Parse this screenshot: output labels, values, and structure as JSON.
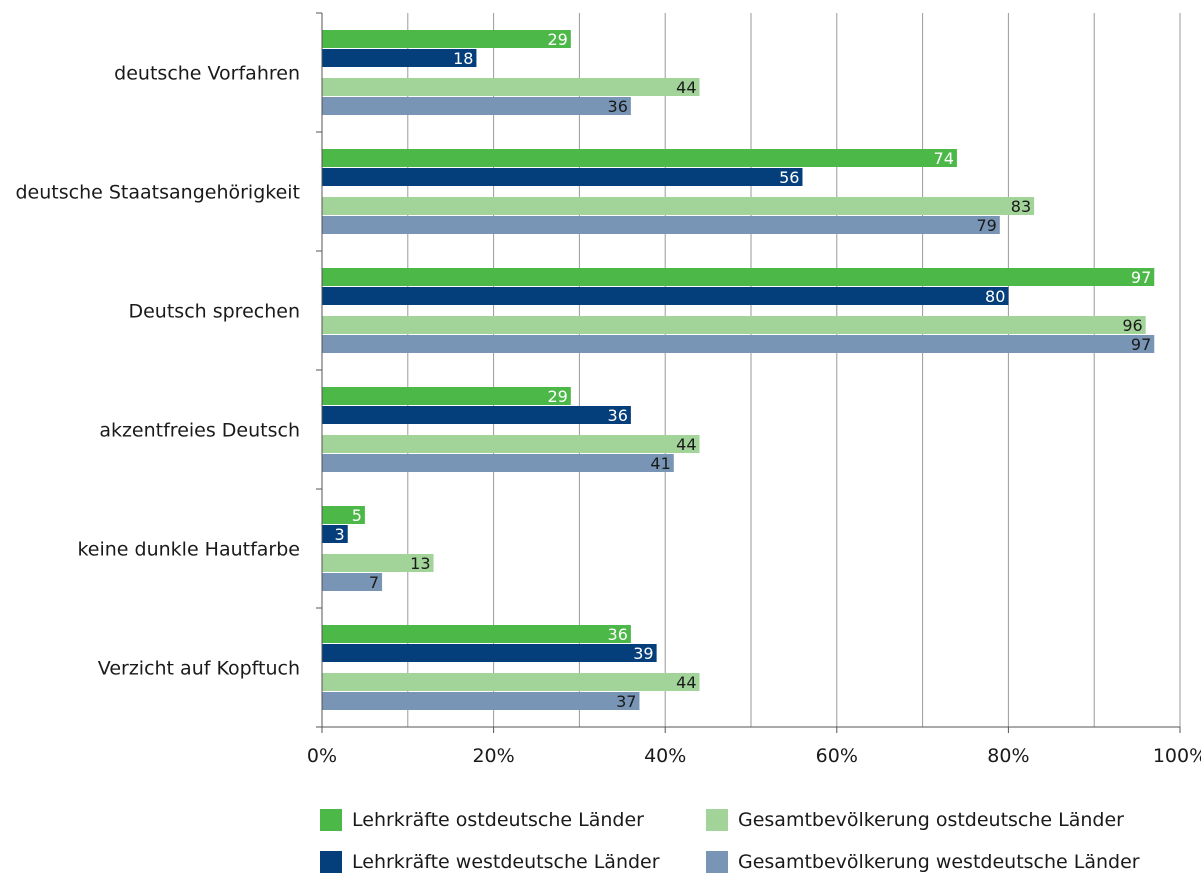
{
  "chart_data": {
    "type": "bar",
    "orientation": "horizontal",
    "title": "",
    "xlabel": "",
    "ylabel": "",
    "xlim": [
      0,
      100
    ],
    "x_ticks": [
      0,
      20,
      40,
      60,
      80,
      100
    ],
    "x_tick_labels": [
      "0%",
      "20%",
      "40%",
      "60%",
      "80%",
      "100%"
    ],
    "grid": "vertical gridlines every 10%",
    "legend_position": "bottom",
    "categories": [
      "deutsche Vorfahren",
      "deutsche Staatsangehörigkeit",
      "Deutsch sprechen",
      "akzentfreies Deutsch",
      "keine dunkle Hautfarbe",
      "Verzicht auf Kopftuch"
    ],
    "series": [
      {
        "name": "Lehrkräfte ostdeutsche Länder",
        "color": "#4cb848",
        "label_color": "#ffffff",
        "values": [
          29,
          74,
          97,
          29,
          5,
          36
        ]
      },
      {
        "name": "Lehrkräfte westdeutsche Länder",
        "color": "#043f7c",
        "label_color": "#ffffff",
        "values": [
          18,
          56,
          80,
          36,
          3,
          39
        ]
      },
      {
        "name": "Gesamtbevölkerung ostdeutsche Länder",
        "color": "#a2d49a",
        "label_color": "#1a1a1a",
        "values": [
          44,
          83,
          96,
          44,
          13,
          44
        ]
      },
      {
        "name": "Gesamtbevölkerung westdeutsche Länder",
        "color": "#7895b5",
        "label_color": "#1a1a1a",
        "values": [
          36,
          79,
          97,
          41,
          7,
          37
        ]
      }
    ]
  },
  "colors": {
    "axis": "#555555",
    "grid": "#9a9a9a"
  }
}
